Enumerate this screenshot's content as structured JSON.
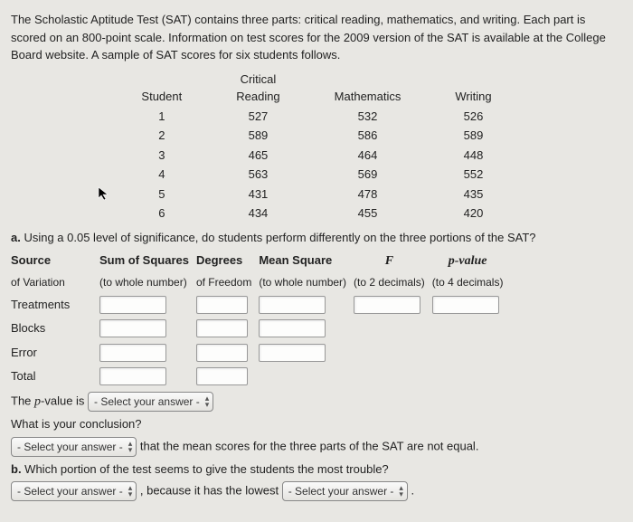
{
  "intro": "The Scholastic Aptitude Test (SAT) contains three parts: critical reading, mathematics, and writing. Each part is scored on an 800-point scale. Information on test scores for the 2009 version of the SAT is available at the College Board website. A sample of SAT scores for six students follows.",
  "table": {
    "headers": {
      "student": "Student",
      "reading": "Critical\nReading",
      "math": "Mathematics",
      "writing": "Writing"
    },
    "rows": [
      {
        "student": "1",
        "reading": "527",
        "math": "532",
        "writing": "526"
      },
      {
        "student": "2",
        "reading": "589",
        "math": "586",
        "writing": "589"
      },
      {
        "student": "3",
        "reading": "465",
        "math": "464",
        "writing": "448"
      },
      {
        "student": "4",
        "reading": "563",
        "math": "569",
        "writing": "552"
      },
      {
        "student": "5",
        "reading": "431",
        "math": "478",
        "writing": "435"
      },
      {
        "student": "6",
        "reading": "434",
        "math": "455",
        "writing": "420"
      }
    ]
  },
  "qa_prefix": "a.",
  "qa": " Using a 0.05 level of significance, do students perform differently on the three portions of the SAT?",
  "anova_headers": {
    "source1": "Source",
    "source2": "of Variation",
    "ss1": "Sum of Squares",
    "ss2": "(to whole number)",
    "df1": "Degrees",
    "df2": "of Freedom",
    "ms1": "Mean Square",
    "ms2": "(to whole number)",
    "f1": "F",
    "f2": "(to 2 decimals)",
    "p1": "p-value",
    "p2": "(to 4 decimals)"
  },
  "anova_rows": [
    "Treatments",
    "Blocks",
    "Error",
    "Total"
  ],
  "pvalue_line_pre": "The ",
  "pvalue_line_mid": "p",
  "pvalue_line_post": "-value is ",
  "conclusion_q": "What is your conclusion?",
  "conclusion_tail": " that the mean scores for the three parts of the SAT are not equal.",
  "qb_prefix": "b.",
  "qb": " Which portion of the test seems to give the students the most trouble?",
  "qb_mid": " , because it has the lowest ",
  "qb_end": " .",
  "select_label": "- Select your answer -",
  "arrows": "▴\n▾"
}
